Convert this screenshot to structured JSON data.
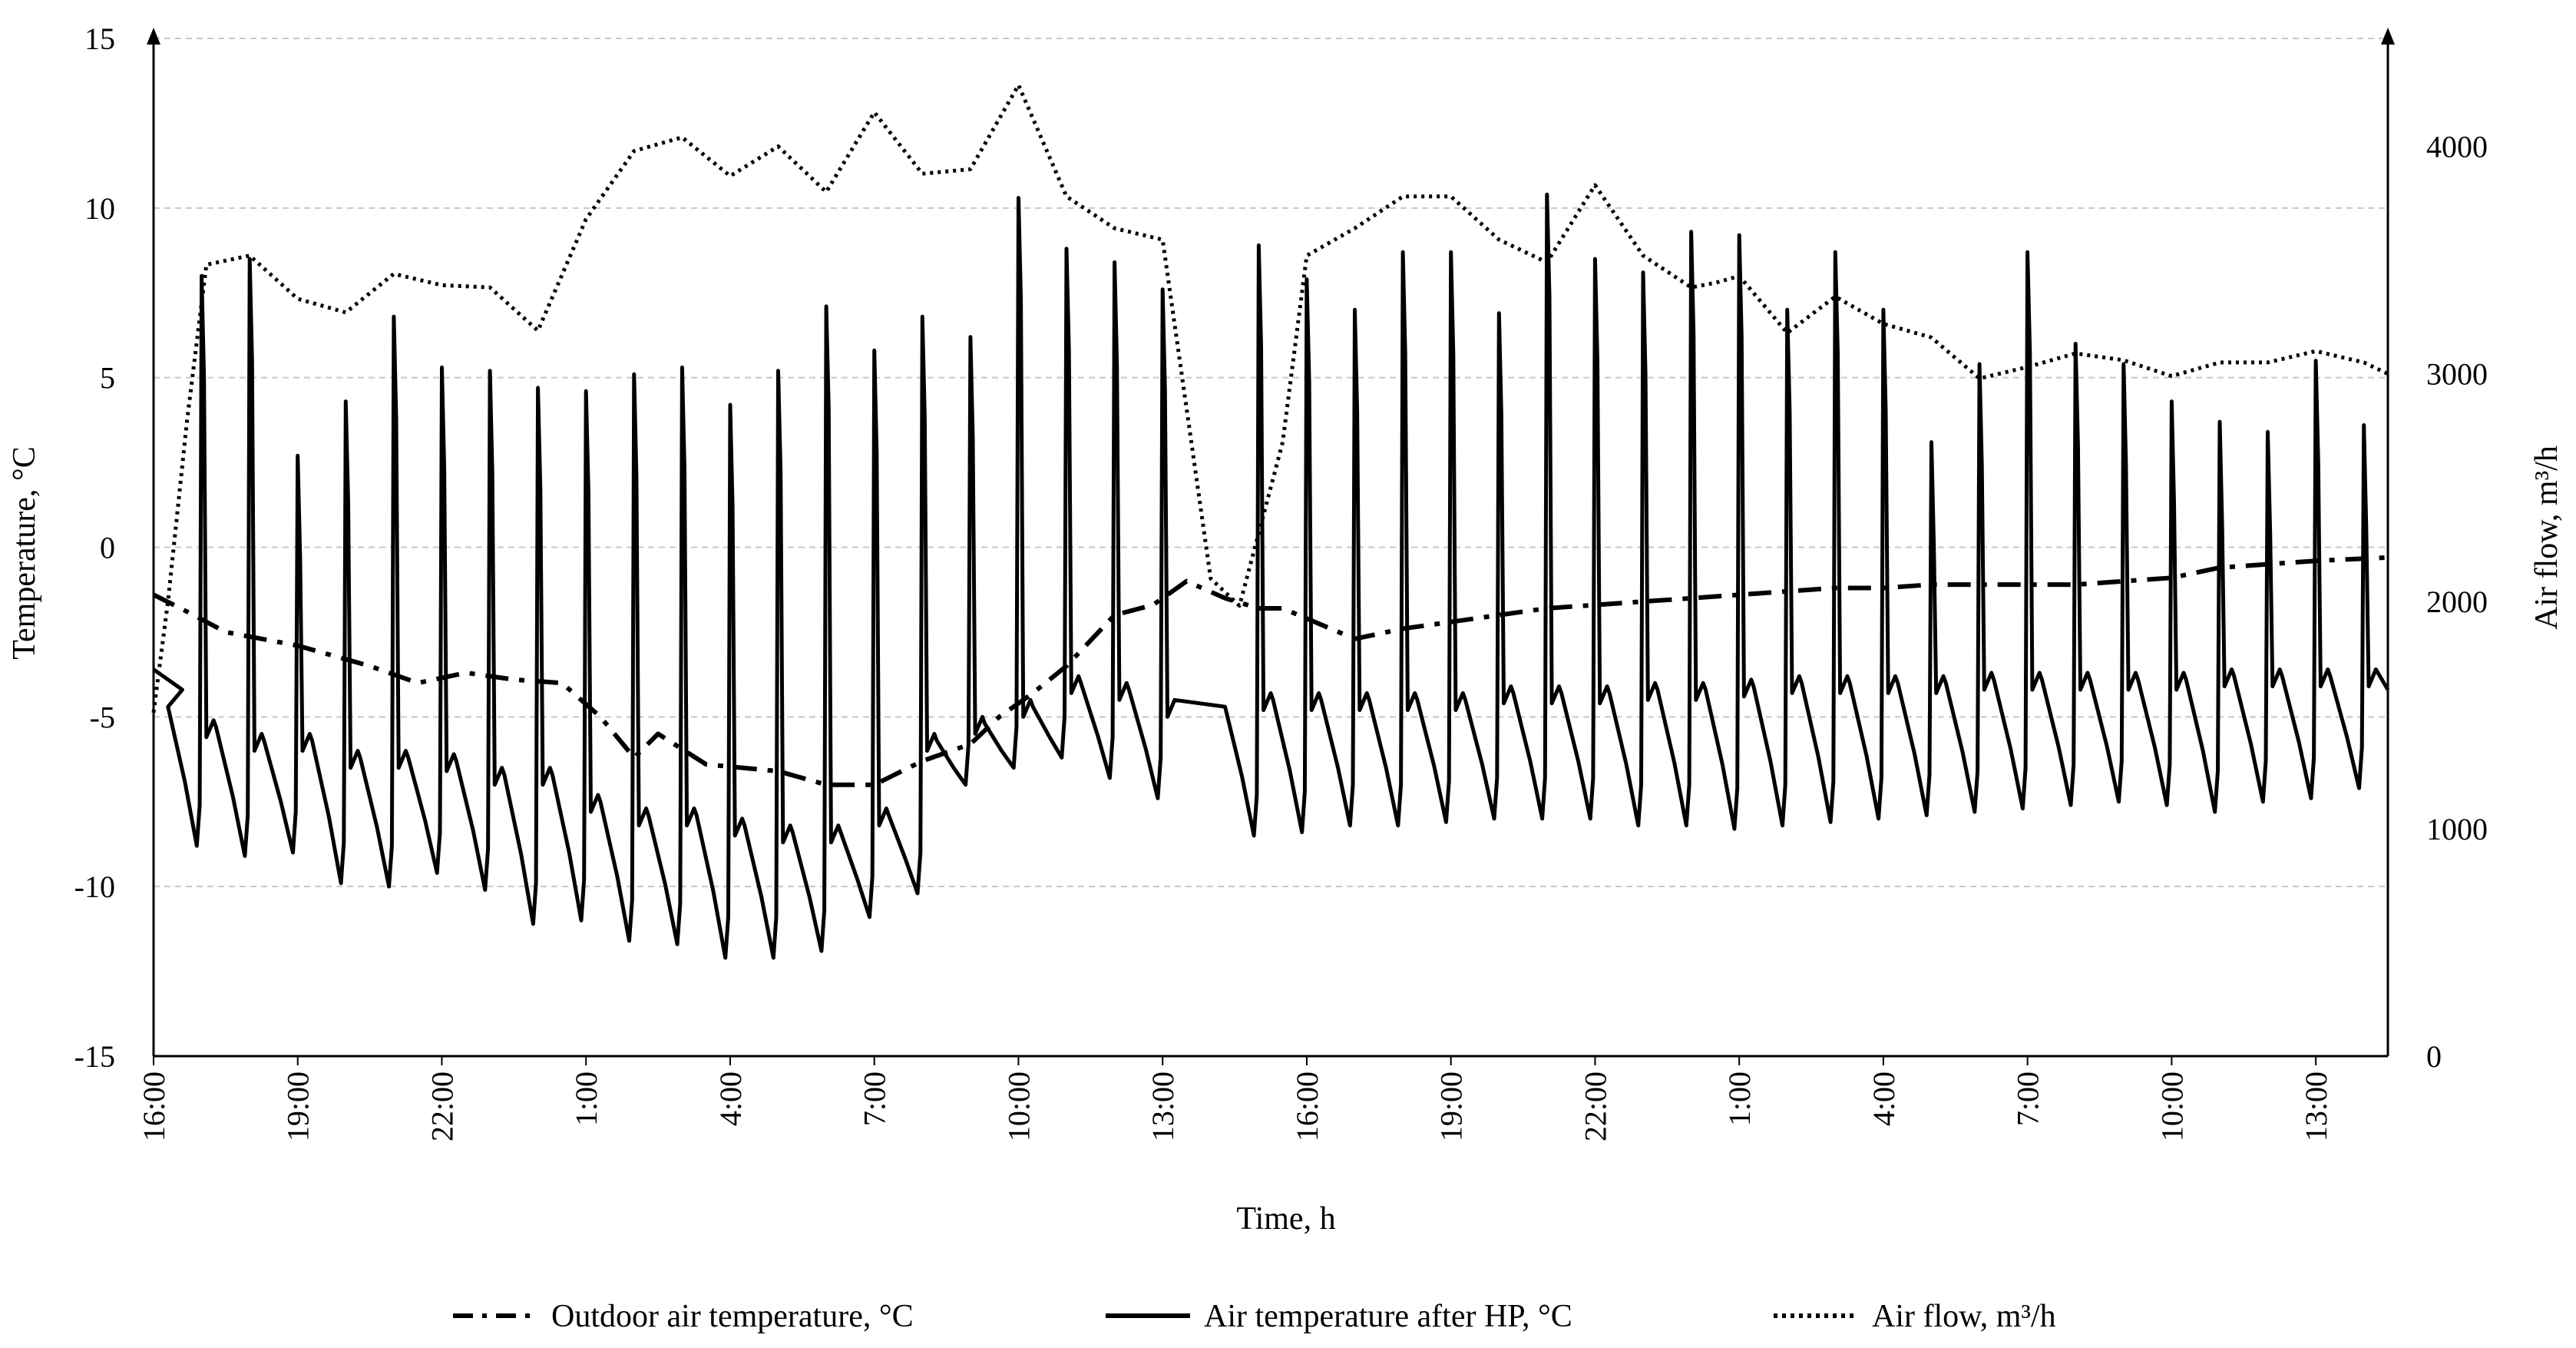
{
  "chart_data": {
    "type": "line",
    "xlabel": "Time, h",
    "ylabel_left": "Temperature, °C",
    "ylabel_right": "Air flow, m³/h",
    "ylim_left": [
      -15,
      15
    ],
    "ylim_right": [
      0,
      4475
    ],
    "yticks_left": [
      "15",
      "10",
      "5",
      "0",
      "-5",
      "-10",
      "-15"
    ],
    "yticks_right": [
      "4000",
      "3000",
      "2000",
      "1000",
      "0"
    ],
    "x_range_hours": [
      0,
      46.5
    ],
    "x_ticks": [
      {
        "h": 0,
        "label": "16:00"
      },
      {
        "h": 3,
        "label": "19:00"
      },
      {
        "h": 6,
        "label": "22:00"
      },
      {
        "h": 9,
        "label": "1:00"
      },
      {
        "h": 12,
        "label": "4:00"
      },
      {
        "h": 15,
        "label": "7:00"
      },
      {
        "h": 18,
        "label": "10:00"
      },
      {
        "h": 21,
        "label": "13:00"
      },
      {
        "h": 24,
        "label": "16:00"
      },
      {
        "h": 27,
        "label": "19:00"
      },
      {
        "h": 30,
        "label": "22:00"
      },
      {
        "h": 33,
        "label": "1:00"
      },
      {
        "h": 36,
        "label": "4:00"
      },
      {
        "h": 39,
        "label": "7:00"
      },
      {
        "h": 42,
        "label": "10:00"
      },
      {
        "h": 45,
        "label": "13:00"
      }
    ],
    "grid": true,
    "legend_position": "bottom",
    "series": [
      {
        "name": "Outdoor air temperature, °C",
        "axis": "left",
        "style": "dash-dot",
        "x": [
          0,
          0.7,
          1.5,
          3,
          4.5,
          5.5,
          6.5,
          7.5,
          8.5,
          9.3,
          10,
          10.5,
          11.5,
          13,
          14,
          15,
          16,
          17,
          17.6,
          18.3,
          19,
          20,
          20.8,
          21.5,
          22.3,
          23,
          23.5,
          24,
          25,
          26,
          27,
          28,
          29,
          30,
          31,
          32,
          33,
          34,
          35,
          36,
          37,
          38,
          39,
          40,
          41,
          42,
          43,
          44,
          45,
          46.5
        ],
        "y": [
          -1.4,
          -1.9,
          -2.5,
          -2.9,
          -3.5,
          -4.0,
          -3.7,
          -3.9,
          -4.0,
          -5.0,
          -6.2,
          -5.5,
          -6.4,
          -6.6,
          -7.0,
          -7.0,
          -6.3,
          -5.8,
          -5.0,
          -4.3,
          -3.5,
          -2.0,
          -1.7,
          -1.0,
          -1.5,
          -1.8,
          -1.8,
          -2.1,
          -2.7,
          -2.4,
          -2.2,
          -2.0,
          -1.8,
          -1.7,
          -1.6,
          -1.5,
          -1.4,
          -1.3,
          -1.2,
          -1.2,
          -1.1,
          -1.1,
          -1.1,
          -1.1,
          -1.0,
          -0.9,
          -0.6,
          -0.5,
          -0.4,
          -0.3
        ]
      },
      {
        "name": "Air temperature after HP, °C",
        "axis": "left",
        "style": "solid",
        "cycle_start_hours": [
          1.0,
          2.0,
          3.0,
          4.0,
          5.0,
          6.0,
          7.0,
          8.0,
          9.0,
          10.0,
          11.0,
          12.0,
          13.0,
          14.0,
          15.0,
          16.0,
          17.0,
          18.0,
          19.0,
          20.0,
          21.0,
          23.0,
          24.0,
          25.0,
          26.0,
          27.0,
          28.0,
          29.0,
          30.0,
          31.0,
          32.0,
          33.0,
          34.0,
          35.0,
          36.0,
          37.0,
          38.0,
          39.0,
          40.0,
          41.0,
          42.0,
          43.0,
          44.0,
          45.0,
          46.0
        ],
        "peak_values": [
          8.0,
          8.5,
          2.7,
          4.3,
          6.8,
          5.3,
          5.2,
          4.7,
          4.6,
          5.1,
          5.3,
          4.2,
          5.2,
          7.1,
          5.8,
          6.8,
          6.2,
          10.3,
          8.8,
          8.4,
          7.6,
          8.9,
          7.9,
          7.0,
          8.7,
          8.7,
          6.9,
          10.4,
          8.5,
          8.1,
          9.3,
          9.2,
          7.0,
          8.7,
          7.0,
          3.1,
          5.4,
          8.7,
          6.0,
          5.4,
          4.3,
          3.7,
          3.4,
          5.5,
          3.6
        ],
        "baseline_values": [
          -5.0,
          -5.6,
          -6.0,
          -6.0,
          -6.5,
          -6.5,
          -6.6,
          -7.0,
          -7.0,
          -7.8,
          -8.2,
          -8.2,
          -8.5,
          -8.7,
          -8.7,
          -8.2,
          -6.0,
          -5.5,
          -5.0,
          -4.3,
          -4.5,
          -5.0,
          -4.8,
          -4.8,
          -4.8,
          -4.8,
          -4.8,
          -4.6,
          -4.6,
          -4.6,
          -4.5,
          -4.5,
          -4.4,
          -4.3,
          -4.3,
          -4.3,
          -4.3,
          -4.2,
          -4.2,
          -4.2,
          -4.2,
          -4.2,
          -4.1,
          -4.1,
          -4.1
        ],
        "trough_values": [
          -8.8,
          -9.1,
          -9.0,
          -9.9,
          -10.0,
          -9.6,
          -10.1,
          -11.1,
          -11.0,
          -11.6,
          -11.7,
          -12.1,
          -12.1,
          -11.9,
          -10.9,
          -10.2,
          -7.0,
          -6.5,
          -6.2,
          -6.8,
          -7.4,
          -8.5,
          -8.4,
          -8.2,
          -8.2,
          -8.1,
          -8.0,
          -8.0,
          -8.0,
          -8.2,
          -8.2,
          -8.3,
          -8.2,
          -8.1,
          -8.0,
          -7.9,
          -7.8,
          -7.7,
          -7.6,
          -7.5,
          -7.6,
          -7.8,
          -7.5,
          -7.4,
          -7.1
        ]
      },
      {
        "name": "Air flow,  m³/h",
        "axis": "right",
        "style": "dotted",
        "x": [
          0,
          0.3,
          0.7,
          1.1,
          2,
          3,
          4,
          5,
          6,
          7,
          8,
          9,
          10,
          11,
          12,
          13,
          14,
          15,
          16,
          17,
          18,
          19,
          20,
          21,
          22,
          22.6,
          23,
          23.5,
          24,
          25,
          26,
          27,
          28,
          29,
          30,
          31,
          32,
          32.5,
          33,
          34,
          35,
          36,
          37,
          38,
          39,
          40,
          41,
          42,
          43,
          44,
          45,
          46,
          46.5
        ],
        "y": [
          1510,
          2000,
          2800,
          3480,
          3520,
          3330,
          3270,
          3440,
          3390,
          3380,
          3190,
          3680,
          3980,
          4040,
          3870,
          4000,
          3800,
          4150,
          3880,
          3900,
          4270,
          3780,
          3640,
          3590,
          2100,
          1980,
          2300,
          2700,
          3520,
          3640,
          3780,
          3780,
          3590,
          3490,
          3830,
          3520,
          3380,
          3400,
          3430,
          3180,
          3340,
          3220,
          3160,
          2980,
          3030,
          3090,
          3060,
          2990,
          3050,
          3050,
          3100,
          3050,
          3000
        ]
      }
    ]
  }
}
